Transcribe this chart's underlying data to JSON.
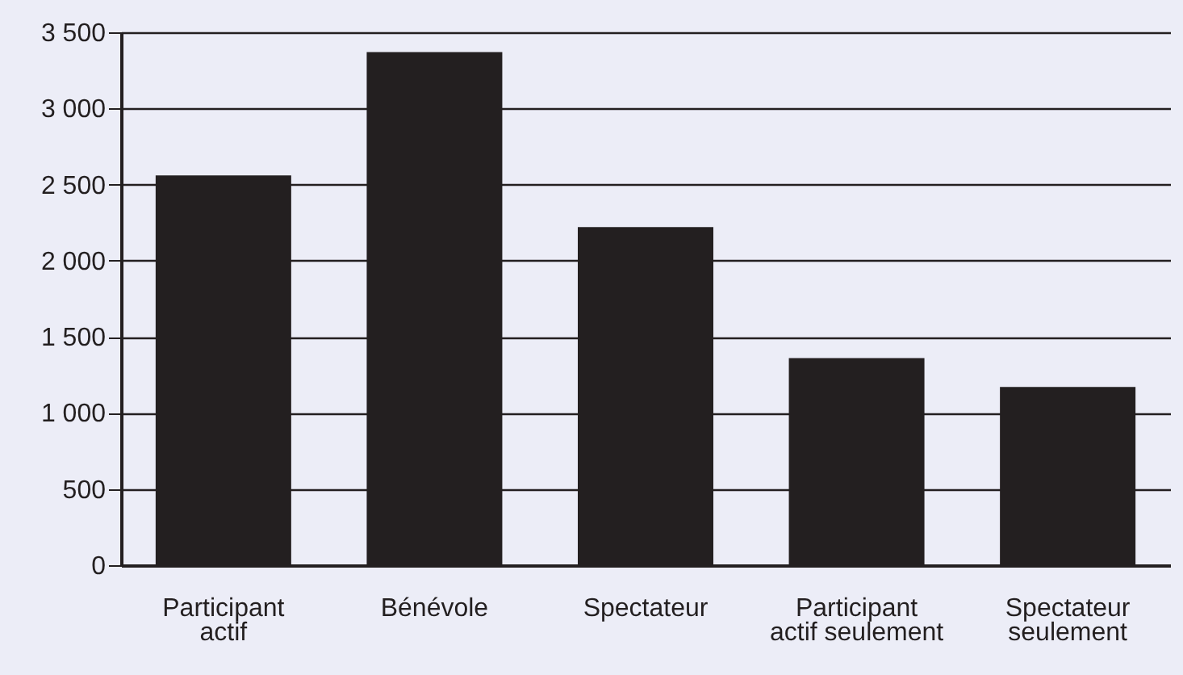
{
  "chart_data": {
    "type": "bar",
    "categories": [
      "Participant actif",
      "Bénévole",
      "Spectateur",
      "Participant actif seulement",
      "Spectateur seulement"
    ],
    "values": [
      2560,
      3370,
      2220,
      1360,
      1170
    ],
    "color": "#231f20",
    "ylim": [
      0,
      3500
    ],
    "yticks": [
      0,
      500,
      {
        "value": 1000,
        "label": "1 000"
      },
      {
        "value": 1500,
        "label": "1 500"
      },
      {
        "value": 2000,
        "label": "2 000"
      },
      {
        "value": 2500,
        "label": "2 500"
      },
      {
        "value": 3000,
        "label": "3 000"
      },
      {
        "value": 3500,
        "label": "3 500"
      }
    ],
    "grid": "y"
  }
}
